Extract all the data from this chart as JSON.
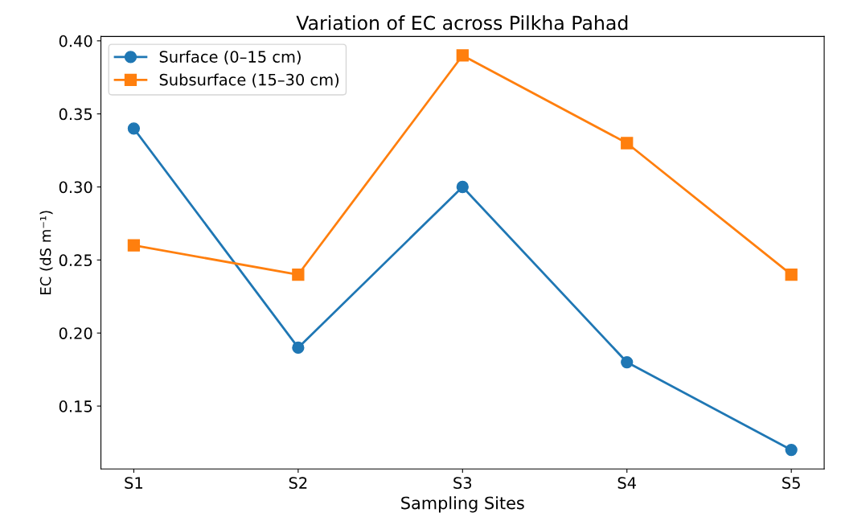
{
  "chart_data": {
    "type": "line",
    "title": "Variation of EC across Pilkha Pahad",
    "xlabel": "Sampling Sites",
    "ylabel": "EC (dS m⁻¹)",
    "categories": [
      "S1",
      "S2",
      "S3",
      "S4",
      "S5"
    ],
    "series": [
      {
        "name": "Surface (0–15 cm)",
        "color": "#1f77b4",
        "marker": "circle",
        "values": [
          0.34,
          0.19,
          0.3,
          0.18,
          0.12
        ]
      },
      {
        "name": "Subsurface (15–30 cm)",
        "color": "#ff7f0e",
        "marker": "square",
        "values": [
          0.26,
          0.24,
          0.39,
          0.33,
          0.24
        ]
      }
    ],
    "ylim": [
      0.107,
      0.403
    ],
    "yticks": [
      {
        "value": 0.15,
        "label": "0.15"
      },
      {
        "value": 0.2,
        "label": "0.20"
      },
      {
        "value": 0.25,
        "label": "0.25"
      },
      {
        "value": 0.3,
        "label": "0.30"
      },
      {
        "value": 0.35,
        "label": "0.35"
      },
      {
        "value": 0.4,
        "label": "0.40"
      }
    ],
    "grid": false,
    "legend": "top left",
    "line_style": "solid"
  }
}
